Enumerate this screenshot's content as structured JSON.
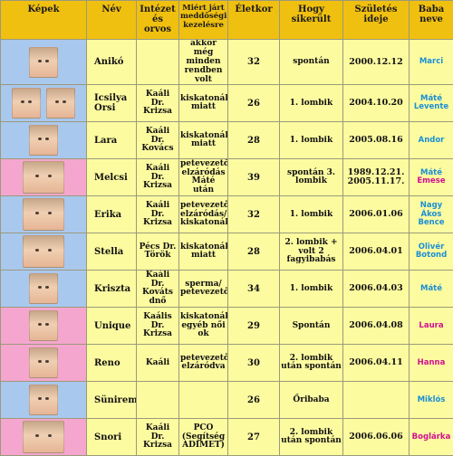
{
  "headers": {
    "photos": "Képek",
    "name": "Név",
    "institute": "Intézet és orvos",
    "reason": "Miért járt meddőségi kezelésre",
    "age": "Életkor",
    "how": "Hogy sikerült",
    "birth": "Születés ideje",
    "baby": "Baba neve"
  },
  "rows": [
    {
      "name": "Anikó",
      "institute": "",
      "reason": "akkor még minden rendben volt",
      "age": "32",
      "how": "spontán",
      "birth": "2000.12.12",
      "baby": [
        "Marci"
      ],
      "baby_color": "#1a8fd4",
      "bg": "#a9c8ee"
    },
    {
      "name": "Icsilya Orsi",
      "institute": "Kaáli Dr. Krizsa",
      "reason": "kiskatonák miatt",
      "age": "26",
      "how": "1. lombik",
      "birth": "2004.10.20",
      "baby": [
        "Máté",
        "Levente"
      ],
      "baby_color": "#1a8fd4",
      "bg": "#a9c8ee"
    },
    {
      "name": "Lara",
      "institute": "Kaáli Dr. Kovács",
      "reason": "kiskatonák miatt",
      "age": "28",
      "how": "1. lombik",
      "birth": "2005.08.16",
      "baby": [
        "Andor"
      ],
      "baby_color": "#1a8fd4",
      "bg": "#a9c8ee"
    },
    {
      "name": "Melcsi",
      "institute": "Kaáli Dr. Krizsa",
      "reason": "petevezető elzáródás Máté után",
      "age": "39",
      "how": "spontán 3. lombik",
      "birth": "1989.12.21. 2005.11.17.",
      "baby": [
        "Máté",
        "Emese"
      ],
      "baby_colors": [
        "#1a8fd4",
        "#d01090"
      ],
      "bg": "#f4a6ce"
    },
    {
      "name": "Erika",
      "institute": "Kaáli Dr. Krizsa",
      "reason": "petevezető elzáródás/ kiskatonák",
      "age": "32",
      "how": "1. lombik",
      "birth": "2006.01.06",
      "baby": [
        "Nagy",
        "Ákos",
        "Bence"
      ],
      "baby_color": "#1a8fd4",
      "bg": "#a9c8ee"
    },
    {
      "name": "Stella",
      "institute": "Pécs Dr. Török",
      "reason": "kiskatonák miatt",
      "age": "28",
      "how": "2. lombik + volt 2 fagyibabás",
      "birth": "2006.04.01",
      "baby": [
        "Olivér",
        "Botond"
      ],
      "baby_color": "#1a8fd4",
      "bg": "#a9c8ee"
    },
    {
      "name": "Kriszta",
      "institute": "Kaáli Dr. Kováts dnő",
      "reason": "sperma/ petevezető",
      "age": "34",
      "how": "1. lombik",
      "birth": "2006.04.03",
      "baby": [
        "Máté"
      ],
      "baby_color": "#1a8fd4",
      "bg": "#a9c8ee"
    },
    {
      "name": "Unique",
      "institute": "Kaális Dr. Krizsa",
      "reason": "kiskatonák egyéb női ok",
      "age": "29",
      "how": "Spontán",
      "birth": "2006.04.08",
      "baby": [
        "Laura"
      ],
      "baby_color": "#d01090",
      "bg": "#f4a6ce"
    },
    {
      "name": "Reno",
      "institute": "Kaáli",
      "reason": "petevezetők elzáródva",
      "age": "30",
      "how": "2. lombik után spontán",
      "birth": "2006.04.11",
      "baby": [
        "Hanna"
      ],
      "baby_color": "#d01090",
      "bg": "#f4a6ce"
    },
    {
      "name": "Süniremóca",
      "institute": "",
      "reason": "",
      "age": "26",
      "how": "Őribaba",
      "birth": "",
      "baby": [
        "Miklós"
      ],
      "baby_color": "#1a8fd4",
      "bg": "#a9c8ee"
    },
    {
      "name": "Snori",
      "institute": "Kaáli Dr. Krizsa",
      "reason": "PCO (Segítség ADIMET)",
      "age": "27",
      "how": "2. lombik után spontán",
      "birth": "2006.06.06",
      "baby": [
        "Boglárka"
      ],
      "baby_color": "#d01090",
      "bg": "#f4a6ce"
    }
  ]
}
